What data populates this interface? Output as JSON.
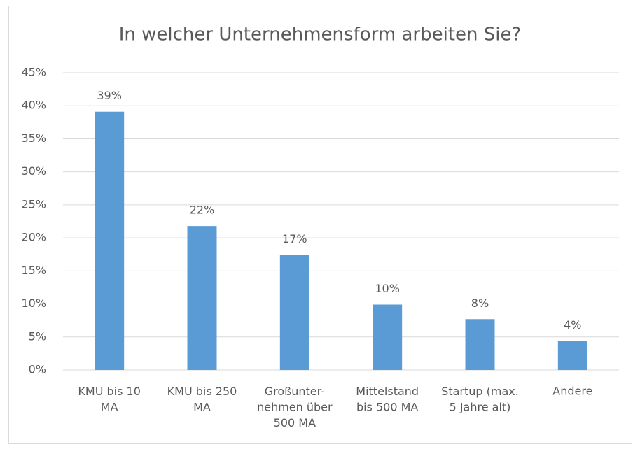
{
  "chart_data": {
    "type": "bar",
    "title": "In welcher Unternehmensform arbeiten Sie?",
    "categories": [
      "KMU bis 10\nMA",
      "KMU bis 250\nMA",
      "Großunter-\nnehmen über\n500 MA",
      "Mittelstand\nbis 500 MA",
      "Startup (max.\n5 Jahre alt)",
      "Andere"
    ],
    "values": [
      39.1,
      21.8,
      17.4,
      9.9,
      7.7,
      4.4
    ],
    "value_labels": [
      "39%",
      "22%",
      "17%",
      "10%",
      "8%",
      "4%"
    ],
    "color": "#5b9bd5",
    "ylim": [
      0,
      45
    ],
    "yticks": [
      {
        "value": 0,
        "label": "0%"
      },
      {
        "value": 5,
        "label": "5%"
      },
      {
        "value": 10,
        "label": "10%"
      },
      {
        "value": 15,
        "label": "15%"
      },
      {
        "value": 20,
        "label": "20%"
      },
      {
        "value": 25,
        "label": "25%"
      },
      {
        "value": 30,
        "label": "30%"
      },
      {
        "value": 35,
        "label": "35%"
      },
      {
        "value": 40,
        "label": "40%"
      },
      {
        "value": 45,
        "label": "45%"
      }
    ],
    "grid": true
  }
}
